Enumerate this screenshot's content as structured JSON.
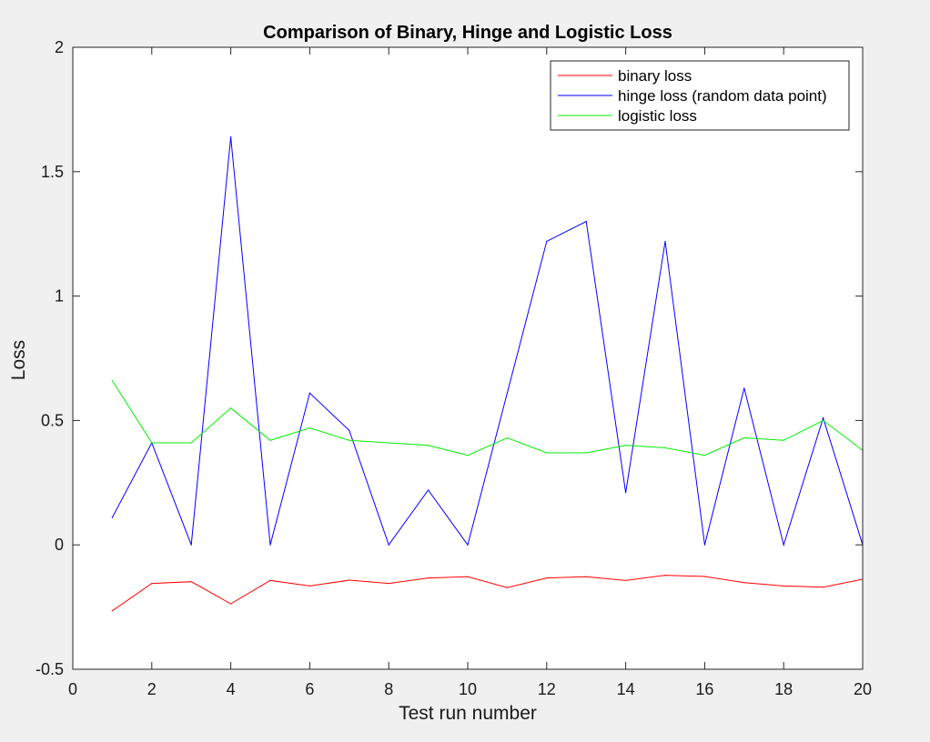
{
  "chart_data": {
    "type": "line",
    "title": "Comparison of Binary, Hinge and Logistic Loss",
    "xlabel": "Test run number",
    "ylabel": "Loss",
    "xlim": [
      0,
      20
    ],
    "ylim": [
      -0.5,
      2
    ],
    "xticks": [
      0,
      2,
      4,
      6,
      8,
      10,
      12,
      14,
      16,
      18,
      20
    ],
    "yticks": [
      -0.5,
      0,
      0.5,
      1,
      1.5,
      2
    ],
    "yticklabels": [
      "-0.5",
      "0",
      "0.5",
      "1",
      "1.5",
      "2"
    ],
    "grid": false,
    "legend_location": "top-right",
    "x": [
      1,
      2,
      3,
      4,
      5,
      6,
      7,
      8,
      9,
      10,
      11,
      12,
      13,
      14,
      15,
      16,
      17,
      18,
      19,
      20
    ],
    "series": [
      {
        "name": "binary loss",
        "color": "#ff0000",
        "values": [
          -0.265,
          -0.155,
          -0.148,
          -0.237,
          -0.143,
          -0.165,
          -0.142,
          -0.155,
          -0.133,
          -0.128,
          -0.172,
          -0.133,
          -0.128,
          -0.143,
          -0.122,
          -0.127,
          -0.152,
          -0.165,
          -0.17,
          -0.138
        ]
      },
      {
        "name": "hinge loss (random data point)",
        "color": "#0000ff",
        "values": [
          0.11,
          0.41,
          0.0,
          1.64,
          0.0,
          0.61,
          0.46,
          0.0,
          0.22,
          0.0,
          0.61,
          1.22,
          1.3,
          0.21,
          1.22,
          0.0,
          0.63,
          0.0,
          0.51,
          0.0
        ]
      },
      {
        "name": "logistic loss",
        "color": "#00ee00",
        "values": [
          0.66,
          0.41,
          0.41,
          0.55,
          0.42,
          0.47,
          0.42,
          0.41,
          0.4,
          0.36,
          0.43,
          0.37,
          0.37,
          0.4,
          0.39,
          0.36,
          0.43,
          0.42,
          0.5,
          0.38
        ]
      }
    ]
  }
}
